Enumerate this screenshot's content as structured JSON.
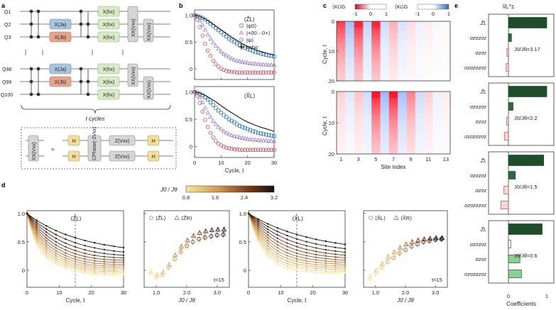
{
  "panel_labels": [
    "a",
    "b",
    "c",
    "d",
    "e"
  ],
  "panel_a": {
    "qubits": [
      "Q1",
      "Q2",
      "Q3",
      "Q98",
      "Q99",
      "Q100"
    ],
    "gates": {
      "hx": "X(hx)",
      "ja": "X(Ja)",
      "jb": "X(Jb)",
      "xx": "XX(Vxx)"
    },
    "ellipsis": "⋮",
    "cycles_label": "t cycles",
    "decomp_lhs": "XX(Vxx)",
    "decomp_eq": "=",
    "decomp_h": "H",
    "decomp_cphase": "CPhase(-2Vxx)",
    "decomp_z": "Z(Vxx)",
    "colors": {
      "hx": "#d9ebc4",
      "ja": "#a9c4dd",
      "jb": "#e4a58e",
      "xx": "#d5d5d5",
      "h": "#f2dd9a"
    }
  },
  "chart_data": [
    {
      "id": "b_top",
      "type": "scatter",
      "label": "⟨Z̃L⟩",
      "xlim": [
        0,
        30
      ],
      "ylim": [
        -0.2,
        1.1
      ],
      "yticks": [
        0,
        0.5,
        1.0
      ],
      "series": [
        {
          "name": "|ψ0⟩",
          "color": "#3a7ab8",
          "marker": "square",
          "x": [
            0,
            1,
            2,
            3,
            4,
            5,
            6,
            7,
            8,
            9,
            10,
            11,
            12,
            13,
            14,
            15,
            16,
            17,
            18,
            19,
            20,
            21,
            22,
            23,
            24,
            25,
            26,
            27,
            28,
            29,
            30
          ],
          "y": [
            1.0,
            0.99,
            0.97,
            0.95,
            0.92,
            0.88,
            0.84,
            0.8,
            0.76,
            0.72,
            0.68,
            0.64,
            0.6,
            0.56,
            0.53,
            0.5,
            0.47,
            0.44,
            0.42,
            0.39,
            0.37,
            0.35,
            0.33,
            0.31,
            0.3,
            0.28,
            0.27,
            0.26,
            0.25,
            0.24,
            0.23
          ]
        },
        {
          "name": "|+00⋯0+⟩",
          "color": "#9b7cc6",
          "marker": "triangle",
          "x": [
            0,
            1,
            2,
            3,
            4,
            5,
            6,
            7,
            8,
            9,
            10,
            11,
            12,
            13,
            14,
            15,
            16,
            17,
            18,
            19,
            20,
            21,
            22,
            23,
            24,
            25,
            26,
            27,
            28,
            29,
            30
          ],
          "y": [
            1.0,
            0.97,
            0.9,
            0.82,
            0.73,
            0.64,
            0.56,
            0.49,
            0.43,
            0.37,
            0.32,
            0.28,
            0.25,
            0.22,
            0.19,
            0.17,
            0.15,
            0.14,
            0.13,
            0.12,
            0.11,
            0.1,
            0.1,
            0.09,
            0.09,
            0.08,
            0.08,
            0.08,
            0.07,
            0.07,
            0.07
          ]
        },
        {
          "name": "|ψ⟩",
          "color": "#c8485a",
          "marker": "circle",
          "x": [
            0,
            1,
            2,
            3,
            4,
            5,
            6,
            7,
            8,
            9,
            10,
            11,
            12,
            13,
            14,
            15,
            16,
            17,
            18,
            19,
            20,
            21,
            22,
            23,
            24,
            25,
            26,
            27,
            28,
            29,
            30
          ],
          "y": [
            1.0,
            0.92,
            0.78,
            0.62,
            0.47,
            0.34,
            0.24,
            0.15,
            0.09,
            0.04,
            0.0,
            -0.02,
            -0.04,
            -0.05,
            -0.06,
            -0.06,
            -0.07,
            -0.07,
            -0.07,
            -0.07,
            -0.07,
            -0.07,
            -0.07,
            -0.07,
            -0.07,
            -0.07,
            -0.07,
            -0.07,
            -0.07,
            -0.07,
            -0.07
          ]
        },
        {
          "name": "echo",
          "color": "#000000",
          "marker": "line",
          "x": [
            0,
            2,
            4,
            6,
            8,
            10,
            12,
            14,
            16,
            18,
            20,
            22,
            24,
            26,
            28,
            30
          ],
          "y": [
            1.0,
            0.98,
            0.93,
            0.87,
            0.8,
            0.73,
            0.66,
            0.59,
            0.53,
            0.47,
            0.42,
            0.38,
            0.34,
            0.31,
            0.28,
            0.26
          ]
        }
      ]
    },
    {
      "id": "b_bottom",
      "type": "scatter",
      "label": "⟨X̃L⟩",
      "xlim": [
        0,
        30
      ],
      "ylim": [
        -0.2,
        1.1
      ],
      "yticks": [
        0,
        0.5,
        1.0
      ],
      "xticks": [
        0,
        10,
        20,
        30
      ],
      "xlabel": "Cycle, t",
      "series": [
        {
          "name": "|ψ0⟩",
          "color": "#3a7ab8",
          "marker": "square",
          "x": [
            0,
            1,
            2,
            3,
            4,
            5,
            6,
            7,
            8,
            9,
            10,
            11,
            12,
            13,
            14,
            15,
            16,
            17,
            18,
            19,
            20,
            21,
            22,
            23,
            24,
            25,
            26,
            27,
            28,
            29,
            30
          ],
          "y": [
            1.0,
            0.99,
            0.97,
            0.94,
            0.9,
            0.86,
            0.81,
            0.76,
            0.71,
            0.66,
            0.62,
            0.58,
            0.54,
            0.5,
            0.47,
            0.44,
            0.41,
            0.38,
            0.36,
            0.34,
            0.32,
            0.3,
            0.28,
            0.27,
            0.25,
            0.24,
            0.23,
            0.22,
            0.21,
            0.2,
            0.19
          ]
        },
        {
          "name": "|+00⋯0+⟩",
          "color": "#9b7cc6",
          "marker": "triangle",
          "x": [
            0,
            1,
            2,
            3,
            4,
            5,
            6,
            7,
            8,
            9,
            10,
            11,
            12,
            13,
            14,
            15,
            16,
            17,
            18,
            19,
            20,
            21,
            22,
            23,
            24,
            25,
            26,
            27,
            28,
            29,
            30
          ],
          "y": [
            1.0,
            0.97,
            0.9,
            0.81,
            0.71,
            0.62,
            0.54,
            0.47,
            0.41,
            0.36,
            0.32,
            0.28,
            0.25,
            0.23,
            0.21,
            0.19,
            0.18,
            0.17,
            0.16,
            0.15,
            0.14,
            0.13,
            0.13,
            0.12,
            0.12,
            0.11,
            0.11,
            0.11,
            0.1,
            0.1,
            0.1
          ]
        },
        {
          "name": "|ψ⟩",
          "color": "#c8485a",
          "marker": "circle",
          "x": [
            0,
            1,
            2,
            3,
            4,
            5,
            6,
            7,
            8,
            9,
            10,
            11,
            12,
            13,
            14,
            15,
            16,
            17,
            18,
            19,
            20,
            21,
            22,
            23,
            24,
            25,
            26,
            27,
            28,
            29,
            30
          ],
          "y": [
            1.0,
            0.93,
            0.8,
            0.64,
            0.49,
            0.36,
            0.25,
            0.17,
            0.1,
            0.05,
            0.02,
            0.0,
            -0.02,
            -0.03,
            -0.04,
            -0.05,
            -0.05,
            -0.06,
            -0.06,
            -0.06,
            -0.06,
            -0.06,
            -0.06,
            -0.06,
            -0.06,
            -0.06,
            -0.06,
            -0.06,
            -0.06,
            -0.06,
            -0.06
          ]
        },
        {
          "name": "echo",
          "color": "#000000",
          "marker": "line",
          "x": [
            0,
            2,
            4,
            6,
            8,
            10,
            12,
            14,
            16,
            18,
            20,
            22,
            24,
            26,
            28,
            30
          ],
          "y": [
            1.0,
            0.98,
            0.94,
            0.88,
            0.82,
            0.75,
            0.68,
            0.62,
            0.56,
            0.5,
            0.45,
            0.41,
            0.37,
            0.34,
            0.31,
            0.28
          ]
        }
      ]
    },
    {
      "id": "c",
      "type": "heatmap",
      "legend_left": "⟨Ki⟩G",
      "legend_right": "⟨Ki⟩G",
      "colorbar_ticks": [
        "-1",
        "0",
        "1"
      ],
      "ylabel": "Cycle, t",
      "xlabel": "Site index",
      "xticks": [
        "1",
        "3",
        "5",
        "7",
        "9",
        "11",
        "13"
      ],
      "yticks": [
        "0",
        "10",
        "20"
      ],
      "top_cols": [
        0.85,
        -0.45,
        0.95,
        -0.3,
        0.95,
        -0.25,
        0.35,
        -0.2,
        0.15,
        -0.1,
        0.08,
        -0.05,
        0.04
      ],
      "bottom_cols": [
        0.2,
        -0.15,
        0.25,
        -0.25,
        1.0,
        -0.5,
        1.0,
        -0.45,
        0.55,
        -0.25,
        0.2,
        -0.1,
        0.08
      ]
    },
    {
      "id": "d1",
      "type": "line",
      "label": "⟨Z̃L⟩",
      "xlim": [
        0,
        30
      ],
      "ylim": [
        -0.3,
        1.05
      ],
      "yticks": [
        0,
        0.5,
        1.0
      ],
      "xticks": [
        0,
        10,
        20,
        30
      ],
      "xlabel": "Cycle, t",
      "ratios": [
        0.8,
        1.0,
        1.2,
        1.4,
        1.6,
        1.8,
        2.0,
        2.2,
        2.4,
        2.6,
        2.8,
        3.0,
        3.2
      ]
    },
    {
      "id": "d2",
      "type": "scatter",
      "legend": [
        "⟨Z̃L⟩",
        "⟨Z̃R⟩"
      ],
      "annotation": "t=15",
      "xlabel": "J0 / Jθ",
      "xticks": [
        1.0,
        2.0,
        3.0
      ],
      "xlim": [
        0.6,
        3.4
      ],
      "ylim": [
        -0.3,
        1.05
      ],
      "x": [
        0.8,
        1.0,
        1.2,
        1.4,
        1.6,
        1.8,
        2.0,
        2.2,
        2.4,
        2.6,
        2.8,
        3.0,
        3.2
      ],
      "left": [
        -0.05,
        -0.12,
        -0.08,
        0.05,
        0.2,
        0.33,
        0.43,
        0.5,
        0.55,
        0.58,
        0.6,
        0.62,
        0.63
      ],
      "right": [
        -0.02,
        -0.08,
        -0.03,
        0.1,
        0.27,
        0.42,
        0.53,
        0.61,
        0.66,
        0.69,
        0.71,
        0.72,
        0.72
      ]
    },
    {
      "id": "d3",
      "type": "line",
      "label": "⟨X̃L⟩",
      "xlim": [
        0,
        30
      ],
      "ylim": [
        -0.3,
        1.05
      ],
      "yticks": [
        0,
        0.5,
        1.0
      ],
      "xticks": [
        0,
        10,
        20,
        30
      ],
      "xlabel": "Cycle, t",
      "ratios": [
        0.8,
        1.0,
        1.2,
        1.4,
        1.6,
        1.8,
        2.0,
        2.2,
        2.4,
        2.6,
        2.8,
        3.0,
        3.2
      ]
    },
    {
      "id": "d4",
      "type": "scatter",
      "legend": [
        "⟨X̃L⟩",
        "⟨X̃R⟩"
      ],
      "annotation": "t=15",
      "xlabel": "J0 / Jθ",
      "xticks": [
        1.0,
        2.0,
        3.0
      ],
      "xlim": [
        0.6,
        3.4
      ],
      "ylim": [
        -0.3,
        1.05
      ],
      "x": [
        0.8,
        1.0,
        1.2,
        1.4,
        1.6,
        1.8,
        2.0,
        2.2,
        2.4,
        2.6,
        2.8,
        3.0,
        3.2
      ],
      "left": [
        -0.15,
        -0.05,
        0.05,
        0.15,
        0.22,
        0.3,
        0.36,
        0.42,
        0.46,
        0.5,
        0.52,
        0.54,
        0.55
      ],
      "right": [
        -0.1,
        0.0,
        0.12,
        0.24,
        0.32,
        0.4,
        0.46,
        0.5,
        0.53,
        0.55,
        0.56,
        0.57,
        0.57
      ]
    },
    {
      "id": "e",
      "type": "bar",
      "title": "ṽL^z",
      "xlabel": "Coefficients",
      "xticks": [
        "0",
        "1"
      ],
      "row_labels": [
        "Z̃L",
        "σzσzσz",
        "σzσz",
        "σzσzσzσz"
      ],
      "panels": [
        {
          "ratio_label": "J0/Jθ=3.17",
          "values": [
            1.0,
            0.08,
            -0.04,
            -0.06
          ]
        },
        {
          "ratio_label": "J0/Jθ=2.2",
          "values": [
            1.0,
            0.12,
            -0.05,
            -0.1
          ]
        },
        {
          "ratio_label": "J0/Jθ=1.5",
          "values": [
            0.92,
            0.18,
            -0.12,
            -0.2
          ]
        },
        {
          "ratio_label": "J0/Jθ=0.6",
          "values": [
            0.88,
            0.06,
            0.3,
            0.34
          ]
        }
      ]
    }
  ],
  "panel_d_colorbar": {
    "label": "J0 / Jθ",
    "ticks": [
      "0.8",
      "1.6",
      "2.4",
      "3.2"
    ]
  }
}
